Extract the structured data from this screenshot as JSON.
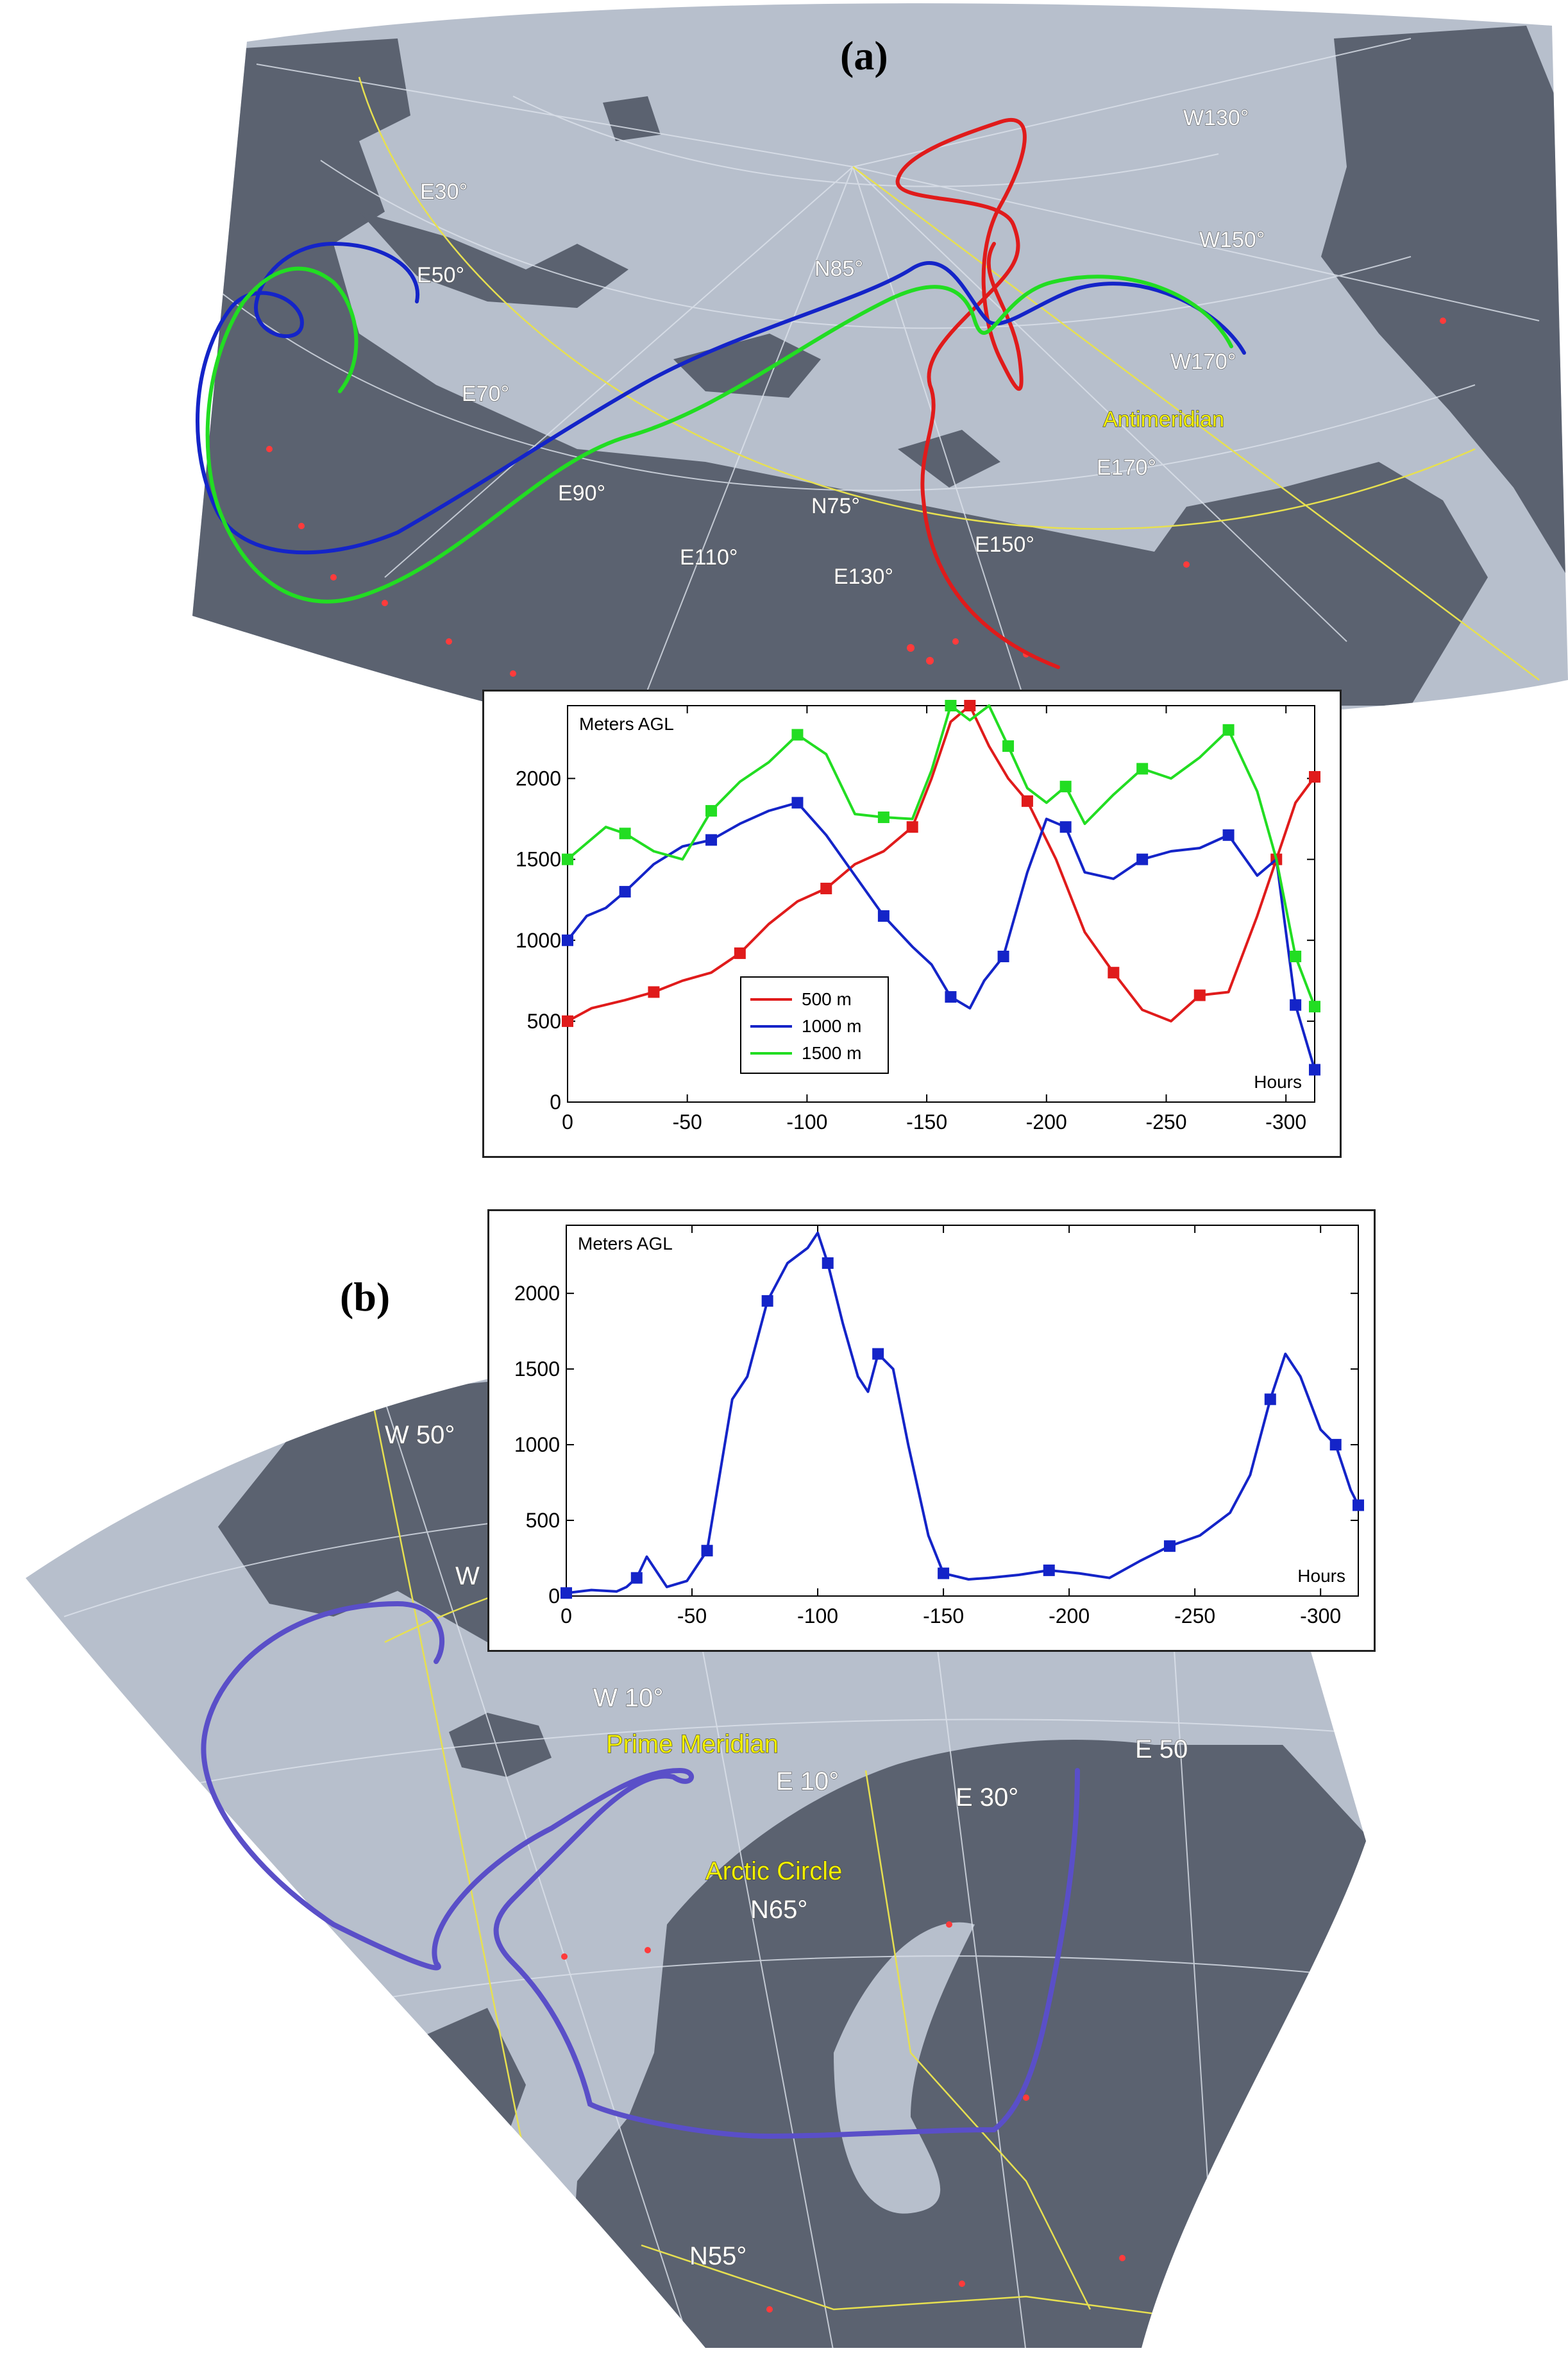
{
  "panel_a": {
    "label": "(a)",
    "map_labels": [
      "E30°",
      "W130°",
      "E50°",
      "N85°",
      "W150°",
      "E70°",
      "W170°",
      "Antimeridian",
      "E90°",
      "E170°",
      "N75°",
      "E150°",
      "E110°",
      "E130°"
    ],
    "chart": {
      "ylabel": "Meters AGL",
      "xlabel": "Hours",
      "legend": [
        "500 m",
        "1000 m",
        "1500 m"
      ]
    }
  },
  "panel_b": {
    "label": "(b)",
    "map_labels": [
      "W 50°",
      "W",
      "W 10°",
      "Prime Meridian",
      "E 10°",
      "E 30°",
      "E 50",
      "Arctic Circle",
      "N65°",
      "N55°"
    ],
    "chart": {
      "ylabel": "Meters AGL",
      "xlabel": "Hours"
    }
  },
  "colors": {
    "ocean": "#b7bfcc",
    "land": "#5b6270",
    "series_500": "#e01b1b",
    "series_1000": "#1424c8",
    "series_1500": "#22dd22",
    "trajectory_b": "#5a4fc8",
    "yellow_label": "#f3f000"
  },
  "chart_data": [
    {
      "type": "line",
      "xlabel": "Hours",
      "ylabel": "Meters AGL",
      "xlim": [
        0,
        -312
      ],
      "ylim": [
        0,
        2450
      ],
      "x_ticks": [
        0,
        -50,
        -100,
        -150,
        -200,
        -250,
        -300
      ],
      "y_ticks": [
        0,
        500,
        1000,
        1500,
        2000
      ],
      "legend_position": "bottom-left",
      "series": [
        {
          "name": "500 m",
          "color": "#e01b1b",
          "x": [
            0,
            -10,
            -24,
            -36,
            -48,
            -60,
            -72,
            -84,
            -96,
            -108,
            -120,
            -132,
            -144,
            -152,
            -160,
            -168,
            -176,
            -184,
            -192,
            -204,
            -216,
            -228,
            -240,
            -252,
            -264,
            -276,
            -288,
            -296,
            -304,
            -312
          ],
          "y": [
            500,
            580,
            630,
            680,
            750,
            800,
            920,
            1100,
            1240,
            1320,
            1470,
            1550,
            1700,
            2000,
            2350,
            2450,
            2200,
            2000,
            1860,
            1500,
            1050,
            800,
            570,
            500,
            660,
            680,
            1150,
            1500,
            1850,
            2010
          ]
        },
        {
          "name": "1000 m",
          "color": "#1424c8",
          "x": [
            0,
            -8,
            -16,
            -24,
            -36,
            -48,
            -60,
            -72,
            -84,
            -96,
            -108,
            -120,
            -132,
            -144,
            -152,
            -160,
            -168,
            -174,
            -182,
            -192,
            -200,
            -208,
            -216,
            -228,
            -240,
            -252,
            -264,
            -276,
            -288,
            -296,
            -304,
            -312
          ],
          "y": [
            1000,
            1150,
            1200,
            1300,
            1470,
            1580,
            1620,
            1720,
            1800,
            1850,
            1650,
            1400,
            1150,
            960,
            850,
            650,
            580,
            750,
            900,
            1420,
            1750,
            1700,
            1420,
            1380,
            1500,
            1550,
            1570,
            1650,
            1400,
            1500,
            600,
            200
          ]
        },
        {
          "name": "1500 m",
          "color": "#22dd22",
          "x": [
            0,
            -8,
            -16,
            -24,
            -36,
            -48,
            -60,
            -72,
            -84,
            -96,
            -108,
            -120,
            -132,
            -144,
            -152,
            -160,
            -168,
            -176,
            -184,
            -192,
            -200,
            -208,
            -216,
            -228,
            -240,
            -252,
            -264,
            -276,
            -288,
            -296,
            -304,
            -312
          ],
          "y": [
            1500,
            1600,
            1700,
            1660,
            1550,
            1500,
            1800,
            1980,
            2100,
            2270,
            2150,
            1780,
            1760,
            1750,
            2050,
            2450,
            2360,
            2450,
            2200,
            1940,
            1850,
            1950,
            1720,
            1900,
            2060,
            2000,
            2130,
            2300,
            1920,
            1500,
            900,
            590
          ]
        }
      ]
    },
    {
      "type": "line",
      "xlabel": "Hours",
      "ylabel": "Meters AGL",
      "xlim": [
        0,
        -315
      ],
      "ylim": [
        0,
        2450
      ],
      "x_ticks": [
        0,
        -50,
        -100,
        -150,
        -200,
        -250,
        -300
      ],
      "y_ticks": [
        0,
        500,
        1000,
        1500,
        2000
      ],
      "series": [
        {
          "name": "",
          "color": "#1424c8",
          "x": [
            0,
            -10,
            -20,
            -24,
            -28,
            -32,
            -40,
            -48,
            -56,
            -62,
            -66,
            -72,
            -80,
            -88,
            -96,
            -100,
            -104,
            -110,
            -116,
            -120,
            -124,
            -130,
            -136,
            -144,
            -150,
            -160,
            -168,
            -180,
            -192,
            -204,
            -216,
            -228,
            -240,
            -252,
            -264,
            -272,
            -280,
            -286,
            -292,
            -300,
            -306,
            -312,
            -315
          ],
          "y": [
            20,
            40,
            30,
            60,
            120,
            260,
            60,
            100,
            300,
            900,
            1300,
            1450,
            1950,
            2200,
            2300,
            2400,
            2200,
            1800,
            1450,
            1350,
            1600,
            1500,
            1000,
            400,
            150,
            110,
            120,
            140,
            170,
            150,
            120,
            230,
            330,
            400,
            550,
            800,
            1300,
            1600,
            1450,
            1100,
            1000,
            700,
            600
          ]
        }
      ]
    }
  ]
}
